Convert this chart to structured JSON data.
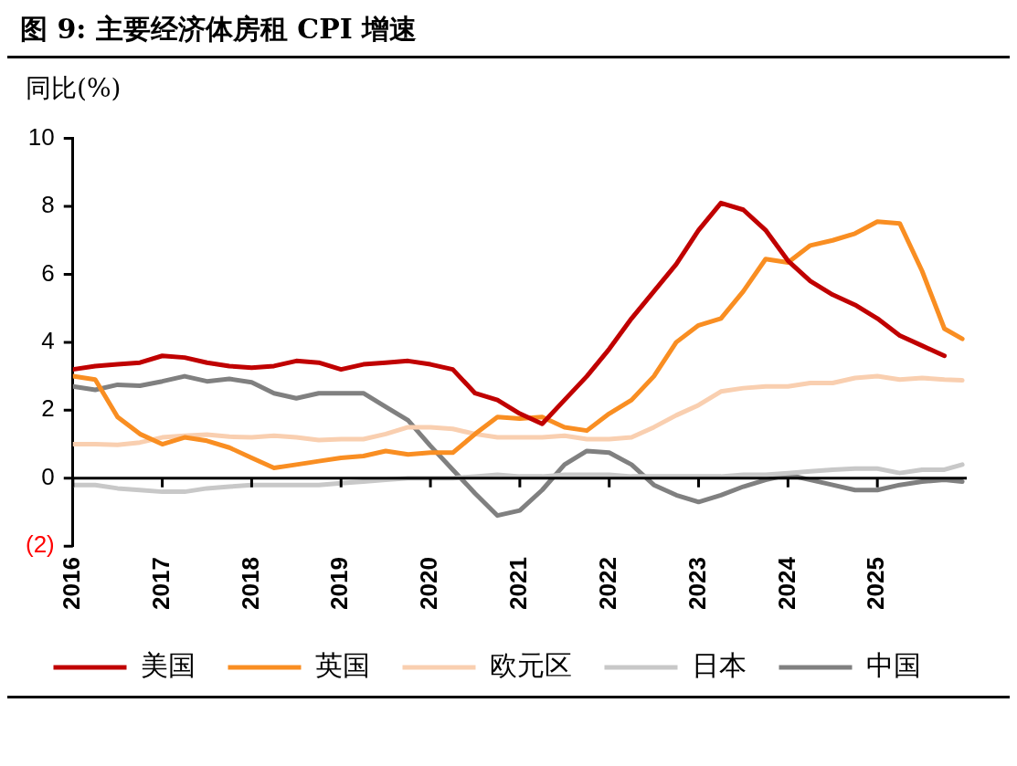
{
  "chart_data": {
    "type": "line",
    "title": "图 9: 主要经济体房租 CPI 增速",
    "ylabel": "同比(%)",
    "x": [
      2016,
      2016.25,
      2016.5,
      2016.75,
      2017,
      2017.25,
      2017.5,
      2017.75,
      2018,
      2018.25,
      2018.5,
      2018.75,
      2019,
      2019.25,
      2019.5,
      2019.75,
      2020,
      2020.25,
      2020.5,
      2020.75,
      2021,
      2021.25,
      2021.5,
      2021.75,
      2022,
      2022.25,
      2022.5,
      2022.75,
      2023,
      2023.25,
      2023.5,
      2023.75,
      2024,
      2024.25,
      2024.5,
      2024.75,
      2025,
      2025.25,
      2025.5,
      2025.75,
      2025.95
    ],
    "series": [
      {
        "name": "美国",
        "color": "#c00000",
        "values": [
          3.2,
          3.3,
          3.35,
          3.4,
          3.6,
          3.55,
          3.4,
          3.3,
          3.25,
          3.3,
          3.45,
          3.4,
          3.2,
          3.35,
          3.4,
          3.45,
          3.35,
          3.2,
          2.5,
          2.3,
          1.9,
          1.6,
          2.3,
          3.0,
          3.8,
          4.7,
          5.5,
          6.3,
          7.3,
          8.1,
          7.9,
          7.3,
          6.4,
          5.8,
          5.4,
          5.1,
          4.7,
          4.2,
          3.9,
          3.6,
          null
        ]
      },
      {
        "name": "英国",
        "color": "#f98e22",
        "values": [
          3.0,
          2.9,
          1.8,
          1.3,
          1.0,
          1.2,
          1.1,
          0.9,
          0.6,
          0.3,
          0.4,
          0.5,
          0.6,
          0.65,
          0.8,
          0.7,
          0.75,
          0.75,
          1.3,
          1.8,
          1.75,
          1.8,
          1.5,
          1.4,
          1.9,
          2.3,
          3.0,
          4.0,
          4.5,
          4.7,
          5.5,
          6.45,
          6.35,
          6.85,
          7.0,
          7.2,
          7.55,
          7.5,
          6.1,
          4.4,
          4.1
        ]
      },
      {
        "name": "欧元区",
        "color": "#f9cfb0",
        "values": [
          1.0,
          1.0,
          0.98,
          1.05,
          1.2,
          1.25,
          1.28,
          1.22,
          1.2,
          1.25,
          1.2,
          1.12,
          1.15,
          1.15,
          1.3,
          1.5,
          1.5,
          1.45,
          1.3,
          1.2,
          1.2,
          1.2,
          1.25,
          1.15,
          1.15,
          1.2,
          1.5,
          1.85,
          2.15,
          2.55,
          2.65,
          2.7,
          2.7,
          2.8,
          2.8,
          2.95,
          3.0,
          2.9,
          2.95,
          2.9,
          2.88
        ]
      },
      {
        "name": "日本",
        "color": "#c8c8c8",
        "values": [
          -0.2,
          -0.2,
          -0.3,
          -0.35,
          -0.4,
          -0.4,
          -0.3,
          -0.25,
          -0.2,
          -0.2,
          -0.2,
          -0.2,
          -0.15,
          -0.1,
          -0.05,
          0,
          0,
          0,
          0.05,
          0.1,
          0.05,
          0.05,
          0.1,
          0.1,
          0.1,
          0.05,
          0.05,
          0.05,
          0.05,
          0.05,
          0.1,
          0.1,
          0.15,
          0.2,
          0.25,
          0.28,
          0.28,
          0.15,
          0.25,
          0.25,
          0.4
        ]
      },
      {
        "name": "中国",
        "color": "#808080",
        "values": [
          2.7,
          2.6,
          2.75,
          2.72,
          2.85,
          3.0,
          2.85,
          2.92,
          2.82,
          2.5,
          2.35,
          2.5,
          2.5,
          2.5,
          2.1,
          1.7,
          0.95,
          0.25,
          -0.45,
          -1.1,
          -0.95,
          -0.35,
          0.4,
          0.8,
          0.75,
          0.4,
          -0.2,
          -0.5,
          -0.7,
          -0.5,
          -0.25,
          -0.05,
          0.1,
          -0.05,
          -0.2,
          -0.35,
          -0.35,
          -0.2,
          -0.1,
          -0.05,
          -0.1
        ]
      }
    ],
    "xlim": [
      2016,
      2026
    ],
    "xticks": [
      2016,
      2017,
      2018,
      2019,
      2020,
      2021,
      2022,
      2023,
      2024,
      2025
    ],
    "ylim": [
      -2,
      10
    ],
    "yticks": [
      {
        "value": -2,
        "label": "(2)"
      },
      0,
      2,
      4,
      6,
      8,
      10
    ],
    "legend": "bottom",
    "marker": "none",
    "line_style": "solid"
  }
}
